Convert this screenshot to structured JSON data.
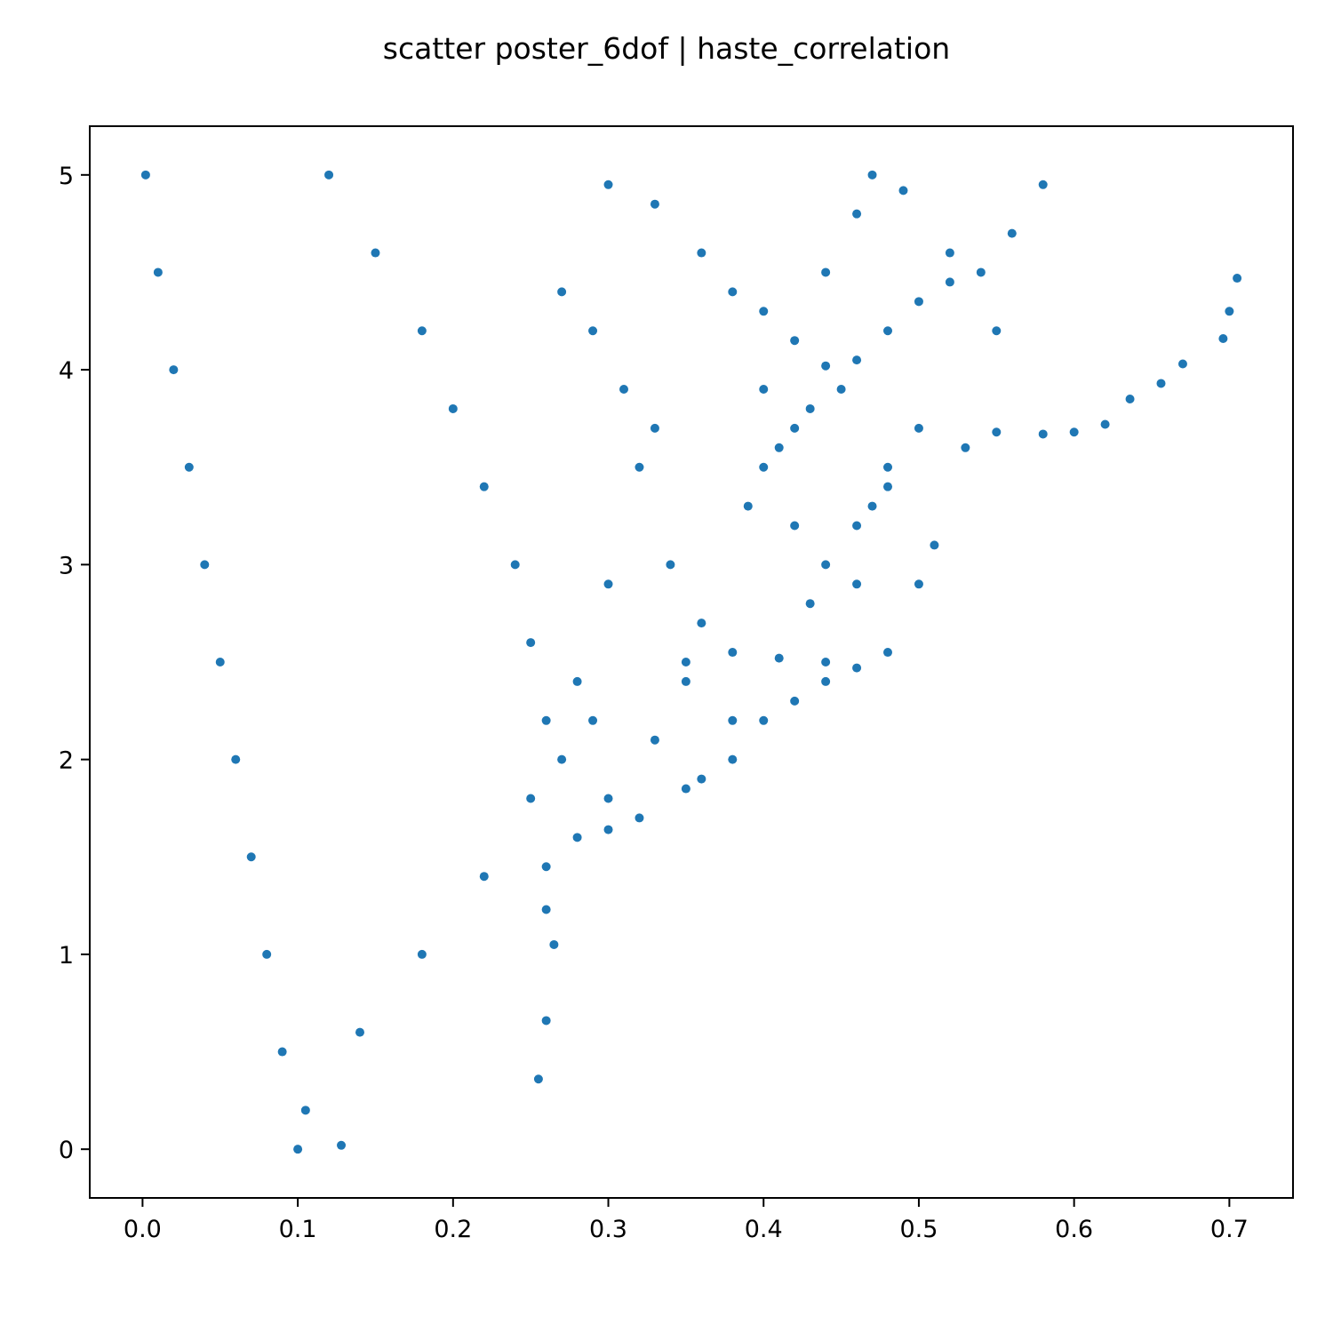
{
  "chart_data": {
    "type": "scatter",
    "title": "scatter poster_6dof | haste_correlation",
    "xlabel": "",
    "ylabel": "",
    "xlim": [
      -0.034,
      0.741
    ],
    "ylim": [
      -0.25,
      5.25
    ],
    "x_ticks": [
      0.0,
      0.1,
      0.2,
      0.3,
      0.4,
      0.5,
      0.6,
      0.7
    ],
    "x_tick_labels": [
      "0.0",
      "0.1",
      "0.2",
      "0.3",
      "0.4",
      "0.5",
      "0.6",
      "0.7"
    ],
    "y_ticks": [
      0,
      1,
      2,
      3,
      4,
      5
    ],
    "y_tick_labels": [
      "0",
      "1",
      "2",
      "3",
      "4",
      "5"
    ],
    "grid": false,
    "legend": "none",
    "color": "#1f77b4",
    "series": [
      {
        "points": [
          [
            0.002,
            5.0
          ],
          [
            0.01,
            4.5
          ],
          [
            0.02,
            4.0
          ],
          [
            0.03,
            3.5
          ],
          [
            0.04,
            3.0
          ],
          [
            0.05,
            2.5
          ],
          [
            0.06,
            2.0
          ],
          [
            0.07,
            1.5
          ],
          [
            0.08,
            1.0
          ],
          [
            0.09,
            0.5
          ],
          [
            0.1,
            0.0
          ],
          [
            0.12,
            5.0
          ],
          [
            0.15,
            4.6
          ],
          [
            0.18,
            4.2
          ],
          [
            0.2,
            3.8
          ],
          [
            0.22,
            3.4
          ],
          [
            0.24,
            3.0
          ],
          [
            0.25,
            2.6
          ],
          [
            0.26,
            2.2
          ],
          [
            0.25,
            1.8
          ],
          [
            0.22,
            1.4
          ],
          [
            0.18,
            1.0
          ],
          [
            0.14,
            0.6
          ],
          [
            0.3,
            4.95
          ],
          [
            0.33,
            4.85
          ],
          [
            0.36,
            4.6
          ],
          [
            0.38,
            4.4
          ],
          [
            0.4,
            4.3
          ],
          [
            0.42,
            4.15
          ],
          [
            0.44,
            4.02
          ],
          [
            0.46,
            4.05
          ],
          [
            0.48,
            4.2
          ],
          [
            0.5,
            4.35
          ],
          [
            0.52,
            4.45
          ],
          [
            0.54,
            4.5
          ],
          [
            0.56,
            4.7
          ],
          [
            0.58,
            4.95
          ],
          [
            0.55,
            3.68
          ],
          [
            0.58,
            3.67
          ],
          [
            0.6,
            3.68
          ],
          [
            0.62,
            3.72
          ],
          [
            0.636,
            3.85
          ],
          [
            0.656,
            3.93
          ],
          [
            0.67,
            4.03
          ],
          [
            0.696,
            4.16
          ],
          [
            0.7,
            4.3
          ],
          [
            0.705,
            4.47
          ],
          [
            0.35,
            2.5
          ],
          [
            0.38,
            2.55
          ],
          [
            0.41,
            2.52
          ],
          [
            0.44,
            2.5
          ],
          [
            0.46,
            2.47
          ],
          [
            0.48,
            2.55
          ],
          [
            0.5,
            2.9
          ],
          [
            0.51,
            3.1
          ],
          [
            0.53,
            3.6
          ],
          [
            0.55,
            4.2
          ],
          [
            0.26,
            1.45
          ],
          [
            0.28,
            1.6
          ],
          [
            0.3,
            1.64
          ],
          [
            0.32,
            1.7
          ],
          [
            0.35,
            1.85
          ],
          [
            0.38,
            2.0
          ],
          [
            0.4,
            2.2
          ],
          [
            0.42,
            2.3
          ],
          [
            0.44,
            2.4
          ],
          [
            0.46,
            2.9
          ],
          [
            0.48,
            3.4
          ],
          [
            0.5,
            3.7
          ],
          [
            0.26,
            1.23
          ],
          [
            0.265,
            1.05
          ],
          [
            0.26,
            0.66
          ],
          [
            0.255,
            0.36
          ],
          [
            0.128,
            0.02
          ],
          [
            0.105,
            0.2
          ],
          [
            0.32,
            3.5
          ],
          [
            0.34,
            3.0
          ],
          [
            0.36,
            2.7
          ],
          [
            0.38,
            2.2
          ],
          [
            0.36,
            1.9
          ],
          [
            0.4,
            3.9
          ],
          [
            0.42,
            3.2
          ],
          [
            0.44,
            4.5
          ],
          [
            0.46,
            4.8
          ],
          [
            0.47,
            5.0
          ],
          [
            0.49,
            4.92
          ],
          [
            0.52,
            4.6
          ],
          [
            0.27,
            4.4
          ],
          [
            0.29,
            4.2
          ],
          [
            0.31,
            3.9
          ],
          [
            0.33,
            3.7
          ],
          [
            0.3,
            2.9
          ],
          [
            0.28,
            2.4
          ],
          [
            0.29,
            2.2
          ],
          [
            0.27,
            2.0
          ],
          [
            0.3,
            1.8
          ],
          [
            0.33,
            2.1
          ],
          [
            0.35,
            2.4
          ],
          [
            0.39,
            3.3
          ],
          [
            0.4,
            3.5
          ],
          [
            0.41,
            3.6
          ],
          [
            0.42,
            3.7
          ],
          [
            0.43,
            3.8
          ],
          [
            0.45,
            3.9
          ],
          [
            0.43,
            2.8
          ],
          [
            0.44,
            3.0
          ],
          [
            0.46,
            3.2
          ],
          [
            0.47,
            3.3
          ],
          [
            0.48,
            3.5
          ]
        ]
      }
    ]
  }
}
